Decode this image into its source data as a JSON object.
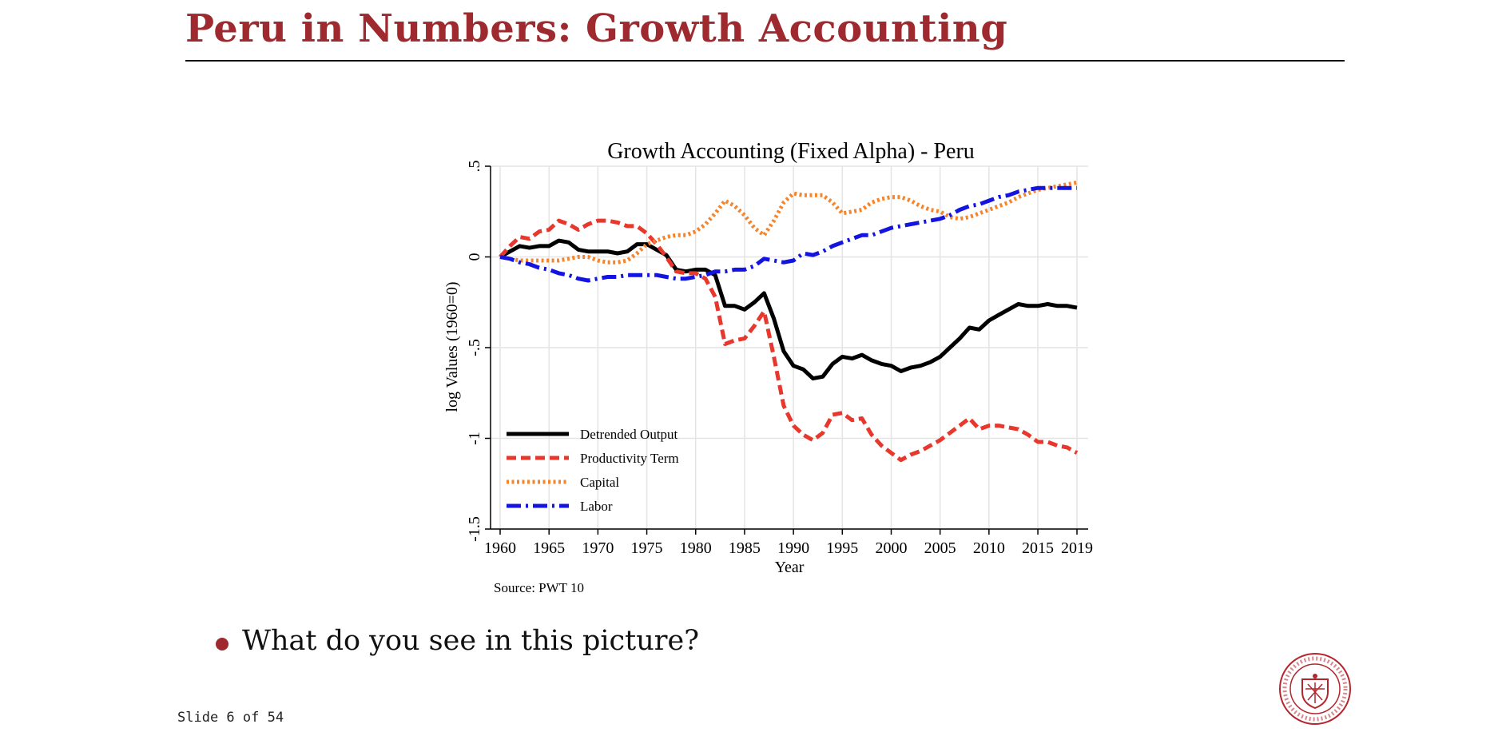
{
  "slide": {
    "title": "Peru in Numbers: Growth Accounting",
    "bullet": "What do you see in this picture?",
    "counter": "Slide 6 of 54",
    "accent_color": "#9e2a2f"
  },
  "seal": {
    "icon": "university-seal-icon",
    "color": "#b3262d"
  },
  "chart_data": {
    "type": "line",
    "title": "Growth Accounting (Fixed Alpha) - Peru",
    "xlabel": "Year",
    "ylabel": "log Values (1960=0)",
    "note": "Source: PWT 10",
    "xlim": [
      1960,
      2019
    ],
    "ylim": [
      -1.5,
      0.5
    ],
    "xticks": [
      1960,
      1965,
      1970,
      1975,
      1980,
      1985,
      1990,
      1995,
      2000,
      2005,
      2010,
      2015,
      2019
    ],
    "yticks": [
      -1.5,
      -1,
      -0.5,
      0,
      0.5
    ],
    "ytick_labels": [
      "-1.5",
      "-1",
      "-.5",
      "0",
      ".5"
    ],
    "grid": true,
    "legend_position": "bottom-left",
    "x": [
      1960,
      1961,
      1962,
      1963,
      1964,
      1965,
      1966,
      1967,
      1968,
      1969,
      1970,
      1971,
      1972,
      1973,
      1974,
      1975,
      1976,
      1977,
      1978,
      1979,
      1980,
      1981,
      1982,
      1983,
      1984,
      1985,
      1986,
      1987,
      1988,
      1989,
      1990,
      1991,
      1992,
      1993,
      1994,
      1995,
      1996,
      1997,
      1998,
      1999,
      2000,
      2001,
      2002,
      2003,
      2004,
      2005,
      2006,
      2007,
      2008,
      2009,
      2010,
      2011,
      2012,
      2013,
      2014,
      2015,
      2016,
      2017,
      2018,
      2019
    ],
    "series": [
      {
        "name": "Detrended Output",
        "color": "#000000",
        "dash": "solid",
        "values": [
          0,
          0.03,
          0.06,
          0.05,
          0.06,
          0.06,
          0.09,
          0.08,
          0.04,
          0.03,
          0.03,
          0.03,
          0.02,
          0.03,
          0.07,
          0.07,
          0.04,
          0.01,
          -0.07,
          -0.08,
          -0.07,
          -0.07,
          -0.1,
          -0.27,
          -0.27,
          -0.29,
          -0.25,
          -0.2,
          -0.34,
          -0.52,
          -0.6,
          -0.62,
          -0.67,
          -0.66,
          -0.59,
          -0.55,
          -0.56,
          -0.54,
          -0.57,
          -0.59,
          -0.6,
          -0.63,
          -0.61,
          -0.6,
          -0.58,
          -0.55,
          -0.5,
          -0.45,
          -0.39,
          -0.4,
          -0.35,
          -0.32,
          -0.29,
          -0.26,
          -0.27,
          -0.27,
          -0.26,
          -0.27,
          -0.27,
          -0.28
        ]
      },
      {
        "name": "Productivity Term",
        "color": "#e8382d",
        "dash": "dash",
        "values": [
          0,
          0.06,
          0.11,
          0.1,
          0.14,
          0.15,
          0.2,
          0.18,
          0.15,
          0.18,
          0.2,
          0.2,
          0.19,
          0.17,
          0.17,
          0.13,
          0.07,
          0,
          -0.08,
          -0.09,
          -0.09,
          -0.12,
          -0.22,
          -0.48,
          -0.46,
          -0.45,
          -0.38,
          -0.3,
          -0.55,
          -0.82,
          -0.93,
          -0.98,
          -1.01,
          -0.97,
          -0.87,
          -0.86,
          -0.9,
          -0.89,
          -0.98,
          -1.04,
          -1.08,
          -1.12,
          -1.09,
          -1.07,
          -1.04,
          -1.01,
          -0.97,
          -0.93,
          -0.89,
          -0.95,
          -0.93,
          -0.93,
          -0.94,
          -0.95,
          -0.98,
          -1.02,
          -1.02,
          -1.04,
          -1.05,
          -1.08
        ]
      },
      {
        "name": "Capital",
        "color": "#f5842a",
        "dash": "dot",
        "values": [
          0,
          -0.01,
          -0.02,
          -0.02,
          -0.02,
          -0.02,
          -0.02,
          -0.01,
          0,
          0,
          -0.02,
          -0.03,
          -0.03,
          -0.02,
          0.02,
          0.07,
          0.09,
          0.11,
          0.12,
          0.12,
          0.14,
          0.18,
          0.24,
          0.31,
          0.28,
          0.23,
          0.16,
          0.12,
          0.2,
          0.3,
          0.35,
          0.34,
          0.34,
          0.34,
          0.3,
          0.24,
          0.25,
          0.26,
          0.3,
          0.32,
          0.33,
          0.33,
          0.31,
          0.28,
          0.26,
          0.25,
          0.22,
          0.21,
          0.22,
          0.24,
          0.26,
          0.28,
          0.3,
          0.33,
          0.35,
          0.37,
          0.38,
          0.39,
          0.4,
          0.41
        ]
      },
      {
        "name": "Labor",
        "color": "#1414e0",
        "dash": "dashdot",
        "values": [
          0,
          -0.01,
          -0.03,
          -0.04,
          -0.06,
          -0.07,
          -0.09,
          -0.1,
          -0.12,
          -0.13,
          -0.12,
          -0.11,
          -0.11,
          -0.1,
          -0.1,
          -0.1,
          -0.1,
          -0.11,
          -0.12,
          -0.12,
          -0.11,
          -0.1,
          -0.08,
          -0.08,
          -0.07,
          -0.07,
          -0.05,
          -0.01,
          -0.02,
          -0.03,
          -0.02,
          0.02,
          0.01,
          0.03,
          0.06,
          0.08,
          0.1,
          0.12,
          0.12,
          0.14,
          0.16,
          0.17,
          0.18,
          0.19,
          0.2,
          0.21,
          0.23,
          0.26,
          0.28,
          0.29,
          0.31,
          0.33,
          0.34,
          0.36,
          0.37,
          0.38,
          0.38,
          0.38,
          0.38,
          0.38
        ]
      }
    ]
  }
}
